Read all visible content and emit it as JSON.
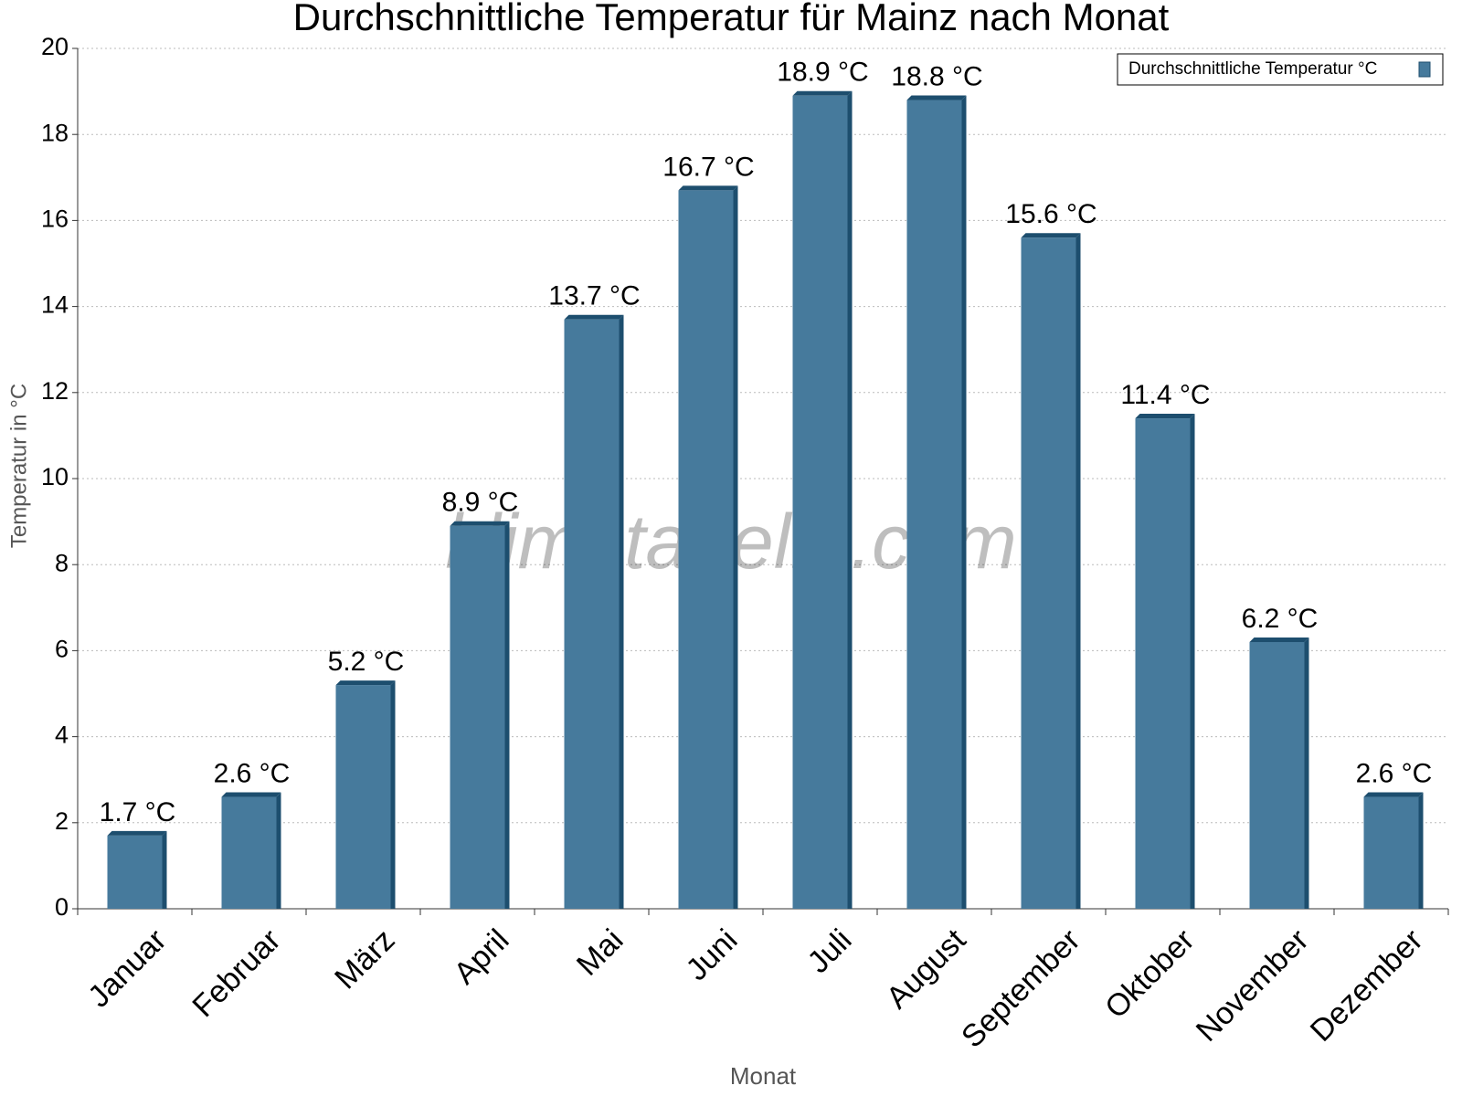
{
  "chart_data": {
    "type": "bar",
    "title": "Durchschnittliche Temperatur für Mainz nach Monat",
    "x_label": "Monat",
    "y_label": "Temperatur in °C",
    "watermark": "klimatabelle.com",
    "categories": [
      "Januar",
      "Februar",
      "März",
      "April",
      "Mai",
      "Juni",
      "Juli",
      "August",
      "September",
      "Oktober",
      "November",
      "Dezember"
    ],
    "series": [
      {
        "name": "Durchschnittliche Temperatur °C",
        "color": "#467a9c",
        "values": [
          1.7,
          2.6,
          5.2,
          8.9,
          13.7,
          16.7,
          18.9,
          18.8,
          15.6,
          11.4,
          6.2,
          2.6
        ],
        "value_labels": [
          "1.7 °C",
          "2.6 °C",
          "5.2 °C",
          "8.9 °C",
          "13.7 °C",
          "16.7 °C",
          "18.9 °C",
          "18.8 °C",
          "15.6 °C",
          "11.4 °C",
          "6.2 °C",
          "2.6 °C"
        ]
      }
    ],
    "ylim": [
      0,
      20
    ],
    "yticks": [
      0,
      2,
      4,
      6,
      8,
      10,
      12,
      14,
      16,
      18,
      20
    ],
    "grid": true,
    "legend": "top-right"
  }
}
